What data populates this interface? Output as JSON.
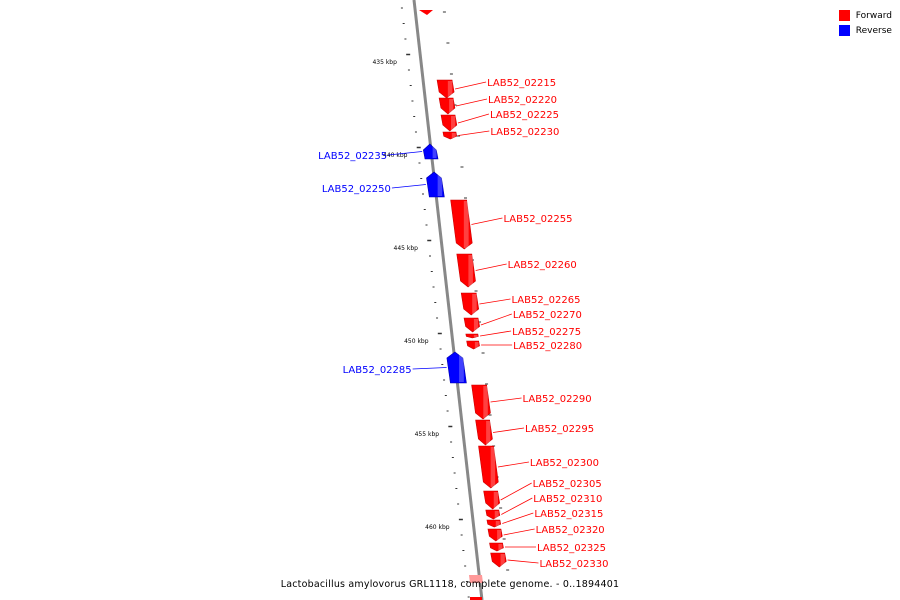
{
  "legend": {
    "forward_label": "Forward",
    "forward_color": "#ff0000",
    "reverse_label": "Reverse",
    "reverse_color": "#0000ff"
  },
  "caption": "Lactobacillus amylovorus GRL1118, complete genome. - 0..1894401",
  "ruler": [
    "435 kbp",
    "440 kbp",
    "445 kbp",
    "450 kbp",
    "455 kbp",
    "460 kbp"
  ],
  "genes": [
    {
      "label": "LAB52_02215",
      "strand": "forward"
    },
    {
      "label": "LAB52_02220",
      "strand": "forward"
    },
    {
      "label": "LAB52_02225",
      "strand": "forward"
    },
    {
      "label": "LAB52_02230",
      "strand": "forward"
    },
    {
      "label": "LAB52_02235",
      "strand": "reverse"
    },
    {
      "label": "LAB52_02250",
      "strand": "reverse"
    },
    {
      "label": "LAB52_02255",
      "strand": "forward"
    },
    {
      "label": "LAB52_02260",
      "strand": "forward"
    },
    {
      "label": "LAB52_02265",
      "strand": "forward"
    },
    {
      "label": "LAB52_02270",
      "strand": "forward"
    },
    {
      "label": "LAB52_02275",
      "strand": "forward"
    },
    {
      "label": "LAB52_02280",
      "strand": "forward"
    },
    {
      "label": "LAB52_02285",
      "strand": "reverse"
    },
    {
      "label": "LAB52_02290",
      "strand": "forward"
    },
    {
      "label": "LAB52_02295",
      "strand": "forward"
    },
    {
      "label": "LAB52_02300",
      "strand": "forward"
    },
    {
      "label": "LAB52_02305",
      "strand": "forward"
    },
    {
      "label": "LAB52_02310",
      "strand": "forward"
    },
    {
      "label": "LAB52_02315",
      "strand": "forward"
    },
    {
      "label": "LAB52_02320",
      "strand": "forward"
    },
    {
      "label": "LAB52_02325",
      "strand": "forward"
    },
    {
      "label": "LAB52_02330",
      "strand": "forward"
    }
  ]
}
